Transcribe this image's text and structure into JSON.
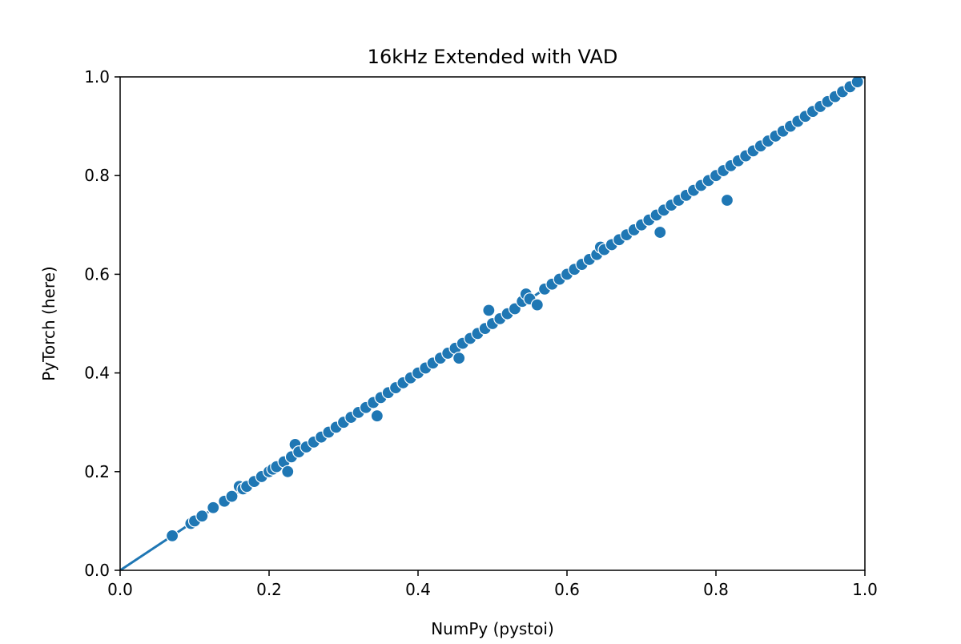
{
  "chart_data": {
    "type": "scatter",
    "title": "16kHz Extended with VAD",
    "xlabel": "NumPy (pystoi)",
    "ylabel": "PyTorch (here)",
    "xlim": [
      0.0,
      1.0
    ],
    "ylim": [
      0.0,
      1.0
    ],
    "xticks": [
      "0.0",
      "0.2",
      "0.4",
      "0.6",
      "0.8",
      "1.0"
    ],
    "yticks": [
      "0.0",
      "0.2",
      "0.4",
      "0.6",
      "0.8",
      "1.0"
    ],
    "grid": false,
    "marker_color": "#1f77b4",
    "line": {
      "x": [
        0.0,
        1.0
      ],
      "y": [
        0.0,
        1.0
      ]
    },
    "x": [
      0.07,
      0.095,
      0.1,
      0.11,
      0.125,
      0.14,
      0.15,
      0.16,
      0.165,
      0.17,
      0.18,
      0.19,
      0.2,
      0.205,
      0.21,
      0.22,
      0.225,
      0.23,
      0.235,
      0.24,
      0.25,
      0.26,
      0.27,
      0.28,
      0.29,
      0.3,
      0.31,
      0.32,
      0.33,
      0.34,
      0.345,
      0.35,
      0.36,
      0.37,
      0.38,
      0.39,
      0.4,
      0.41,
      0.42,
      0.43,
      0.44,
      0.45,
      0.455,
      0.46,
      0.47,
      0.48,
      0.49,
      0.495,
      0.5,
      0.51,
      0.52,
      0.53,
      0.54,
      0.545,
      0.55,
      0.56,
      0.57,
      0.58,
      0.59,
      0.6,
      0.61,
      0.62,
      0.63,
      0.64,
      0.645,
      0.65,
      0.66,
      0.67,
      0.68,
      0.69,
      0.7,
      0.71,
      0.72,
      0.725,
      0.73,
      0.74,
      0.75,
      0.76,
      0.77,
      0.78,
      0.79,
      0.8,
      0.81,
      0.815,
      0.82,
      0.83,
      0.84,
      0.85,
      0.86,
      0.87,
      0.88,
      0.89,
      0.9,
      0.91,
      0.92,
      0.93,
      0.94,
      0.95,
      0.96,
      0.97,
      0.98,
      0.99
    ],
    "y": [
      0.07,
      0.095,
      0.1,
      0.11,
      0.127,
      0.14,
      0.15,
      0.17,
      0.165,
      0.17,
      0.18,
      0.19,
      0.2,
      0.205,
      0.21,
      0.22,
      0.2,
      0.23,
      0.255,
      0.24,
      0.25,
      0.26,
      0.27,
      0.28,
      0.29,
      0.3,
      0.31,
      0.32,
      0.33,
      0.34,
      0.313,
      0.35,
      0.36,
      0.37,
      0.38,
      0.39,
      0.4,
      0.41,
      0.42,
      0.43,
      0.44,
      0.45,
      0.43,
      0.46,
      0.47,
      0.48,
      0.49,
      0.527,
      0.5,
      0.51,
      0.52,
      0.53,
      0.545,
      0.56,
      0.55,
      0.538,
      0.57,
      0.58,
      0.59,
      0.6,
      0.61,
      0.62,
      0.63,
      0.64,
      0.655,
      0.65,
      0.66,
      0.67,
      0.68,
      0.69,
      0.7,
      0.71,
      0.72,
      0.685,
      0.73,
      0.74,
      0.75,
      0.76,
      0.77,
      0.78,
      0.79,
      0.8,
      0.81,
      0.75,
      0.82,
      0.83,
      0.84,
      0.85,
      0.86,
      0.87,
      0.88,
      0.89,
      0.9,
      0.91,
      0.92,
      0.93,
      0.94,
      0.95,
      0.96,
      0.97,
      0.98,
      0.99
    ]
  }
}
